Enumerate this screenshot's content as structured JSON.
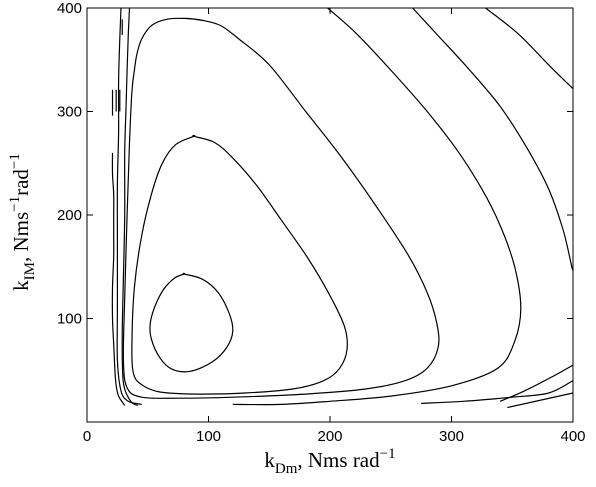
{
  "chart_data": {
    "type": "line",
    "xlabel": {
      "main": "k",
      "sub": "Dm",
      "rest": ", Nms rad",
      "sup": "−1"
    },
    "ylabel": {
      "main": "k",
      "sub": "IM",
      "rest": ", Nms",
      "sup1": "−1",
      "mid": "rad",
      "sup2": "−1"
    },
    "xlim": [
      0,
      400
    ],
    "ylim": [
      0,
      400
    ],
    "x_ticks": [
      0,
      100,
      200,
      300,
      400
    ],
    "y_ticks": [
      100,
      200,
      300,
      400
    ],
    "x_tick_labels": [
      "0",
      "100",
      "200",
      "300",
      "400"
    ],
    "y_tick_labels": [
      "100",
      "200",
      "300",
      "400"
    ],
    "grid": false,
    "legend": "none",
    "line_color": "#000000",
    "series": [
      {
        "closed": true,
        "points": [
          [
            80,
            143
          ],
          [
            95,
            138
          ],
          [
            108,
            125
          ],
          [
            117,
            105
          ],
          [
            120,
            88
          ],
          [
            115,
            72
          ],
          [
            103,
            58
          ],
          [
            85,
            49
          ],
          [
            70,
            51
          ],
          [
            60,
            62
          ],
          [
            53,
            80
          ],
          [
            52,
            95
          ],
          [
            56,
            112
          ],
          [
            63,
            128
          ],
          [
            72,
            139
          ],
          [
            80,
            143
          ]
        ]
      },
      {
        "closed": true,
        "points": [
          [
            88,
            276
          ],
          [
            105,
            270
          ],
          [
            120,
            255
          ],
          [
            140,
            228
          ],
          [
            160,
            195
          ],
          [
            182,
            158
          ],
          [
            200,
            122
          ],
          [
            212,
            92
          ],
          [
            214,
            70
          ],
          [
            208,
            52
          ],
          [
            195,
            40
          ],
          [
            170,
            32
          ],
          [
            130,
            28
          ],
          [
            90,
            27
          ],
          [
            60,
            29
          ],
          [
            45,
            36
          ],
          [
            38,
            48
          ],
          [
            37,
            80
          ],
          [
            39,
            130
          ],
          [
            45,
            180
          ],
          [
            53,
            220
          ],
          [
            62,
            250
          ],
          [
            73,
            268
          ],
          [
            88,
            276
          ]
        ]
      },
      {
        "closed": false,
        "points": [
          [
            39,
            340
          ],
          [
            41,
            355
          ],
          [
            45,
            370
          ],
          [
            53,
            383
          ],
          [
            65,
            389
          ],
          [
            80,
            390
          ],
          [
            95,
            388
          ],
          [
            110,
            383
          ],
          [
            125,
            370
          ],
          [
            150,
            345
          ],
          [
            180,
            300
          ],
          [
            210,
            255
          ],
          [
            240,
            205
          ],
          [
            265,
            160
          ],
          [
            280,
            125
          ],
          [
            288,
            95
          ],
          [
            289,
            72
          ],
          [
            280,
            52
          ],
          [
            262,
            40
          ],
          [
            230,
            32
          ],
          [
            180,
            27
          ],
          [
            120,
            24
          ],
          [
            75,
            23
          ],
          [
            45,
            24
          ],
          [
            33,
            33
          ],
          [
            30,
            60
          ],
          [
            31,
            120
          ],
          [
            33,
            200
          ],
          [
            35,
            270
          ],
          [
            37,
            320
          ],
          [
            39,
            340
          ]
        ]
      },
      {
        "closed": false,
        "points": [
          [
            28,
            400
          ],
          [
            27,
            370
          ],
          [
            26,
            330
          ],
          [
            26,
            280
          ],
          [
            25,
            230
          ],
          [
            25,
            170
          ],
          [
            25,
            110
          ],
          [
            25,
            60
          ],
          [
            28,
            30
          ],
          [
            34,
            20
          ],
          [
            45,
            17
          ]
        ]
      },
      {
        "closed": false,
        "points": [
          [
            35,
            400
          ],
          [
            34,
            375
          ],
          [
            33,
            340
          ],
          [
            32,
            300
          ],
          [
            31,
            260
          ],
          [
            31,
            200
          ],
          [
            30,
            140
          ],
          [
            29,
            80
          ],
          [
            30,
            38
          ],
          [
            36,
            20
          ],
          [
            42,
            16
          ]
        ]
      },
      {
        "closed": false,
        "points": [
          [
            29,
            389
          ],
          [
            29,
            374
          ]
        ]
      },
      {
        "closed": false,
        "points": [
          [
            21,
            321
          ],
          [
            21,
            296
          ]
        ]
      },
      {
        "closed": false,
        "points": [
          [
            24,
            321
          ],
          [
            24,
            300
          ]
        ]
      },
      {
        "closed": false,
        "points": [
          [
            27,
            321
          ],
          [
            27,
            300
          ]
        ]
      },
      {
        "closed": false,
        "points": [
          [
            21,
            260
          ],
          [
            21,
            240
          ],
          [
            22,
            220
          ],
          [
            22,
            200
          ],
          [
            22,
            180
          ],
          [
            22,
            160
          ],
          [
            21,
            130
          ],
          [
            21,
            100
          ],
          [
            22,
            75
          ],
          [
            23,
            50
          ],
          [
            24,
            35
          ],
          [
            26,
            25
          ],
          [
            31,
            16
          ]
        ]
      },
      {
        "closed": false,
        "points": [
          [
            198,
            400
          ],
          [
            222,
            375
          ],
          [
            250,
            340
          ],
          [
            280,
            300
          ],
          [
            305,
            262
          ],
          [
            325,
            225
          ],
          [
            340,
            190
          ],
          [
            352,
            150
          ],
          [
            357,
            110
          ],
          [
            352,
            78
          ],
          [
            338,
            52
          ],
          [
            300,
            35
          ],
          [
            250,
            25
          ],
          [
            200,
            20
          ],
          [
            160,
            17
          ],
          [
            120,
            17
          ]
        ]
      },
      {
        "closed": false,
        "points": [
          [
            268,
            400
          ],
          [
            290,
            372
          ],
          [
            315,
            340
          ],
          [
            340,
            305
          ],
          [
            362,
            265
          ],
          [
            380,
            225
          ],
          [
            392,
            185
          ],
          [
            399,
            150
          ],
          [
            400,
            148
          ]
        ]
      },
      {
        "closed": false,
        "points": [
          [
            400,
            40
          ],
          [
            380,
            28
          ],
          [
            350,
            24
          ],
          [
            310,
            20
          ],
          [
            275,
            18
          ]
        ]
      },
      {
        "closed": false,
        "points": [
          [
            328,
            400
          ],
          [
            355,
            375
          ],
          [
            380,
            345
          ],
          [
            400,
            322
          ]
        ]
      },
      {
        "closed": false,
        "points": [
          [
            400,
            55
          ],
          [
            385,
            45
          ],
          [
            360,
            30
          ],
          [
            340,
            20
          ]
        ]
      },
      {
        "closed": false,
        "points": [
          [
            346,
            14
          ],
          [
            400,
            28
          ]
        ]
      }
    ]
  }
}
